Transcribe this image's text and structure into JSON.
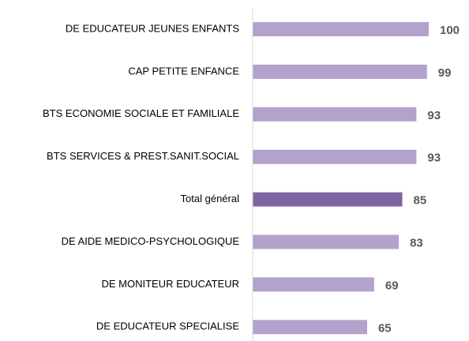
{
  "chart_data": {
    "type": "bar",
    "orientation": "horizontal",
    "categories": [
      "DE EDUCATEUR JEUNES ENFANTS",
      "CAP PETITE ENFANCE",
      "BTS ECONOMIE SOCIALE ET FAMILIALE",
      "BTS SERVICES & PREST.SANIT.SOCIAL",
      "Total général",
      "DE AIDE MEDICO-PSYCHOLOGIQUE",
      "DE MONITEUR EDUCATEUR",
      "DE EDUCATEUR SPECIALISE"
    ],
    "values": [
      100,
      99,
      93,
      93,
      85,
      83,
      69,
      65
    ],
    "colors": [
      "#b3a2cc",
      "#b3a2cc",
      "#b3a2cc",
      "#b3a2cc",
      "#8064a2",
      "#b3a2cc",
      "#b3a2cc",
      "#b3a2cc"
    ],
    "xlim": [
      0,
      100
    ],
    "grid": false
  }
}
